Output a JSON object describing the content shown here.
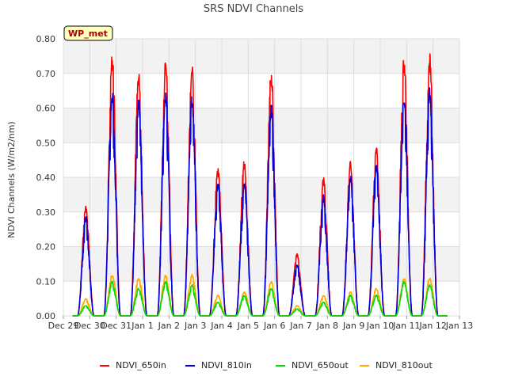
{
  "chart_data": {
    "type": "line",
    "title": "SRS NDVI Channels",
    "xlabel": "",
    "ylabel": "NDVI Channels (W/m2/nm)",
    "xlim": [
      0,
      15
    ],
    "ylim": [
      0,
      0.8
    ],
    "y_ticks": [
      0.0,
      0.1,
      0.2,
      0.3,
      0.4,
      0.5,
      0.6,
      0.7,
      0.8
    ],
    "y_tick_labels": [
      "0.00",
      "0.10",
      "0.20",
      "0.30",
      "0.40",
      "0.50",
      "0.60",
      "0.70",
      "0.80"
    ],
    "x_ticks": [
      0,
      1,
      2,
      3,
      4,
      5,
      6,
      7,
      8,
      9,
      10,
      11,
      12,
      13,
      14,
      15
    ],
    "x_tick_labels": [
      "Dec 29",
      "Dec 30",
      "Dec 31",
      "Jan 1",
      "Jan 2",
      "Jan 3",
      "Jan 4",
      "Jan 5",
      "Jan 6",
      "Jan 7",
      "Jan 8",
      "Jan 9",
      "Jan 10",
      "Jan 11",
      "Jan 12",
      "Jan 13"
    ],
    "grid": true,
    "badge": "WP_met",
    "legend_position": "bottom",
    "day_centers": [
      0.85,
      1.85,
      2.85,
      3.87,
      4.87,
      5.85,
      6.85,
      7.87,
      8.85,
      9.85,
      10.87,
      11.85,
      12.9,
      13.87
    ],
    "series": [
      {
        "name": "NDVI_650in",
        "color": "#ff0000",
        "daily_peak": [
          0.32,
          0.76,
          0.71,
          0.74,
          0.73,
          0.43,
          0.45,
          0.71,
          0.18,
          0.4,
          0.45,
          0.49,
          0.75,
          0.76
        ]
      },
      {
        "name": "NDVI_810in",
        "color": "#0000dd",
        "daily_peak": [
          0.29,
          0.66,
          0.63,
          0.65,
          0.64,
          0.39,
          0.39,
          0.61,
          0.15,
          0.35,
          0.41,
          0.44,
          0.65,
          0.66
        ]
      },
      {
        "name": "NDVI_650out",
        "color": "#00dd00",
        "daily_peak": [
          0.03,
          0.1,
          0.08,
          0.1,
          0.09,
          0.04,
          0.06,
          0.08,
          0.02,
          0.04,
          0.06,
          0.06,
          0.1,
          0.09
        ]
      },
      {
        "name": "NDVI_810out",
        "color": "#ffaa00",
        "daily_peak": [
          0.05,
          0.12,
          0.11,
          0.12,
          0.12,
          0.06,
          0.07,
          0.1,
          0.03,
          0.06,
          0.07,
          0.08,
          0.11,
          0.11
        ]
      }
    ]
  }
}
